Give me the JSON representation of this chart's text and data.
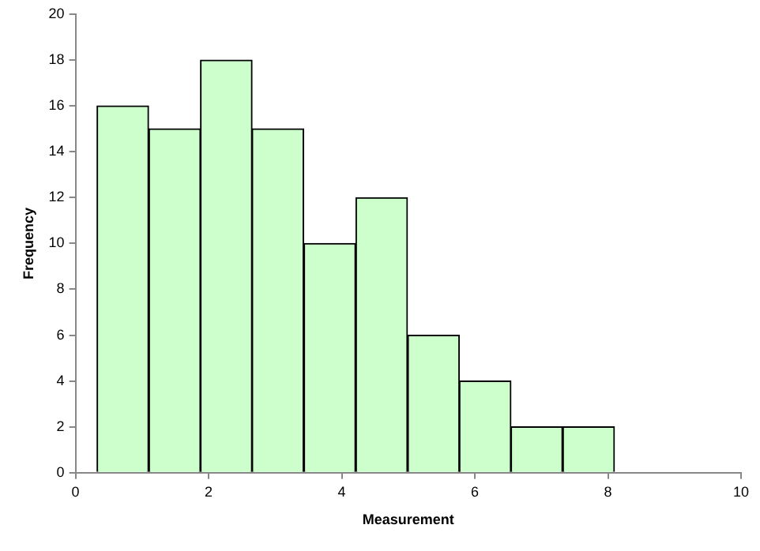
{
  "chart_data": {
    "type": "histogram",
    "xlabel": "Measurement",
    "ylabel": "Frequency",
    "bins": [
      0.32,
      1.1,
      1.88,
      2.65,
      3.43,
      4.21,
      4.99,
      5.77,
      6.54,
      7.32,
      8.1
    ],
    "values": [
      16,
      15,
      18,
      15,
      10,
      12,
      6,
      4,
      2,
      2
    ],
    "color": "#ccffcc",
    "xlim": [
      0,
      10
    ],
    "xticks": [
      0,
      2,
      4,
      6,
      8,
      10
    ],
    "ylim": [
      0,
      20
    ],
    "yticks": [
      0,
      2,
      4,
      6,
      8,
      10,
      12,
      14,
      16,
      18,
      20
    ],
    "grid": false,
    "legend": false
  }
}
